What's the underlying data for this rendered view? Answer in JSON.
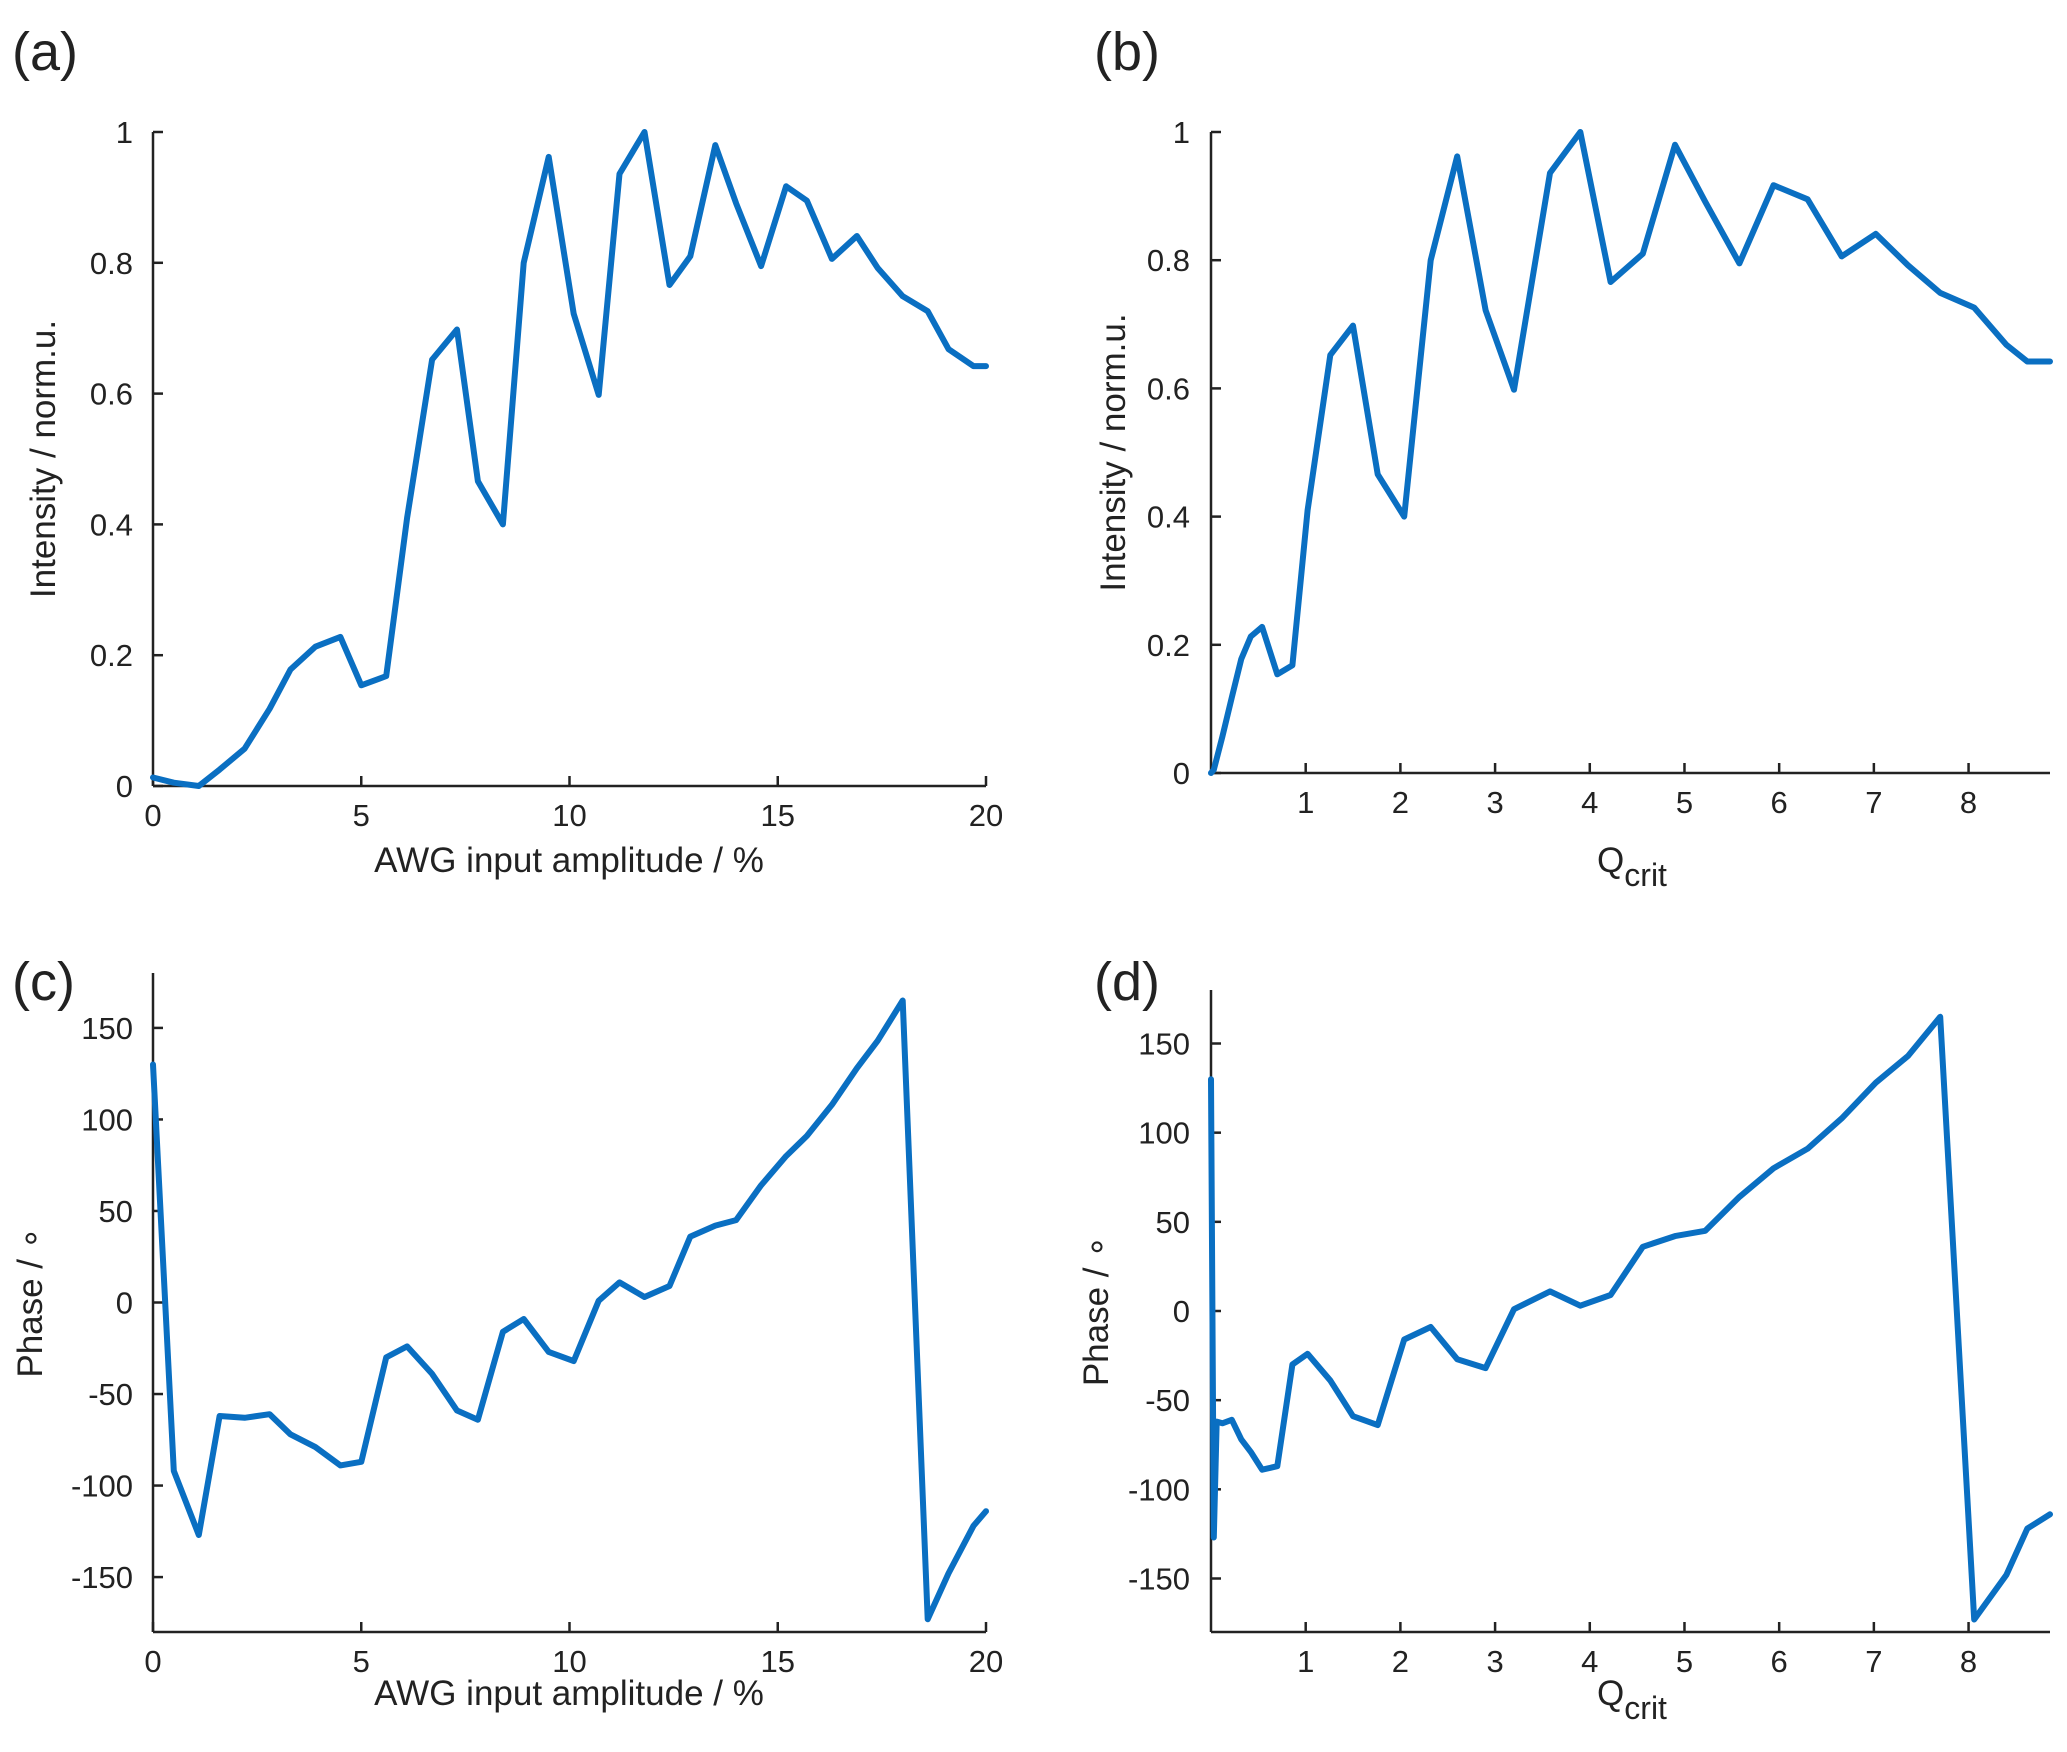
{
  "figure": {
    "series_color": "#0a6fc2",
    "axis_color": "#222222"
  },
  "chart_data": [
    {
      "panel": "(a)",
      "type": "line",
      "xlabel": "AWG input amplitude / %",
      "ylabel": "Intensity / norm.u.",
      "xlim": [
        0,
        20
      ],
      "ylim": [
        0,
        1
      ],
      "xticks": [
        0,
        5,
        10,
        15,
        20
      ],
      "yticks": [
        0,
        0.2,
        0.4,
        0.6,
        0.8,
        1
      ],
      "xtick_labels": [
        "0",
        "5",
        "10",
        "15",
        "20"
      ],
      "ytick_labels": [
        "0",
        "0.2",
        "0.4",
        "0.6",
        "0.8",
        "1"
      ],
      "grid": false,
      "series": [
        {
          "x": [
            0,
            0.5,
            1.1,
            1.6,
            2.2,
            2.8,
            3.3,
            3.9,
            4.5,
            5.0,
            5.6,
            6.1,
            6.7,
            7.3,
            7.8,
            8.4,
            8.9,
            9.5,
            10.1,
            10.7,
            11.2,
            11.8,
            12.4,
            12.9,
            13.5,
            14.0,
            14.6,
            15.2,
            15.7,
            16.3,
            16.9,
            17.4,
            18.0,
            18.6,
            19.1,
            19.7,
            20.0
          ],
          "y": [
            0.013,
            0.005,
            0.0,
            0.025,
            0.057,
            0.118,
            0.178,
            0.213,
            0.228,
            0.154,
            0.168,
            0.41,
            0.652,
            0.698,
            0.466,
            0.4,
            0.8,
            0.962,
            0.722,
            0.598,
            0.936,
            1.0,
            0.766,
            0.81,
            0.98,
            0.891,
            0.795,
            0.917,
            0.895,
            0.806,
            0.841,
            0.792,
            0.749,
            0.726,
            0.668,
            0.642,
            0.642
          ]
        }
      ]
    },
    {
      "panel": "(b)",
      "type": "line",
      "xlabel_main": "Q",
      "xlabel_sub": "crit",
      "ylabel": "Intensity / norm.u.",
      "xlim": [
        0,
        8.86
      ],
      "ylim": [
        0,
        1
      ],
      "xticks": [
        1,
        2,
        3,
        4,
        5,
        6,
        7,
        8
      ],
      "yticks": [
        0,
        0.2,
        0.4,
        0.6,
        0.8,
        1
      ],
      "xtick_labels": [
        "1",
        "2",
        "3",
        "4",
        "5",
        "6",
        "7",
        "8"
      ],
      "ytick_labels": [
        "0",
        "0.2",
        "0.4",
        "0.6",
        "0.8",
        "1"
      ],
      "grid": false,
      "series": [
        {
          "x": [
            0.0,
            0.03,
            0.12,
            0.22,
            0.32,
            0.42,
            0.54,
            0.7,
            0.86,
            1.02,
            1.26,
            1.5,
            1.76,
            2.04,
            2.32,
            2.6,
            2.9,
            3.2,
            3.58,
            3.9,
            4.22,
            4.56,
            4.9,
            5.22,
            5.58,
            5.94,
            6.3,
            6.66,
            7.02,
            7.36,
            7.7,
            8.06,
            8.4,
            8.62,
            8.86
          ],
          "y": [
            0.0,
            0.005,
            0.057,
            0.118,
            0.178,
            0.213,
            0.228,
            0.154,
            0.168,
            0.41,
            0.652,
            0.698,
            0.466,
            0.4,
            0.8,
            0.962,
            0.722,
            0.598,
            0.936,
            1.0,
            0.766,
            0.81,
            0.98,
            0.891,
            0.795,
            0.917,
            0.895,
            0.806,
            0.841,
            0.792,
            0.749,
            0.726,
            0.668,
            0.642,
            0.642
          ]
        }
      ]
    },
    {
      "panel": "(c)",
      "type": "line",
      "xlabel": "AWG input amplitude / %",
      "ylabel": "Phase / ∘",
      "xlim": [
        0,
        20
      ],
      "ylim": [
        -180,
        180
      ],
      "xticks": [
        0,
        5,
        10,
        15,
        20
      ],
      "yticks": [
        -150,
        -100,
        -50,
        0,
        50,
        100,
        150
      ],
      "xtick_labels": [
        "0",
        "5",
        "10",
        "15",
        "20"
      ],
      "ytick_labels": [
        "-150",
        "-100",
        "-50",
        "0",
        "50",
        "100",
        "150"
      ],
      "grid": false,
      "series": [
        {
          "x": [
            0,
            0.5,
            1.1,
            1.6,
            2.2,
            2.8,
            3.3,
            3.9,
            4.5,
            5.0,
            5.6,
            6.1,
            6.7,
            7.3,
            7.8,
            8.4,
            8.9,
            9.5,
            10.1,
            10.7,
            11.2,
            11.8,
            12.4,
            12.9,
            13.5,
            14.0,
            14.6,
            15.2,
            15.7,
            16.3,
            16.9,
            17.4,
            18.0,
            18.6,
            19.1,
            19.7,
            20.0
          ],
          "y": [
            130,
            -92,
            -127,
            -62,
            -63,
            -61,
            -72,
            -79,
            -89,
            -87,
            -30,
            -24,
            -39,
            -59,
            -64,
            -16,
            -9,
            -27,
            -32,
            1,
            11,
            3,
            9,
            36,
            42,
            45,
            64,
            80,
            91,
            108,
            128,
            143,
            165,
            -173,
            -148,
            -122,
            -114
          ]
        }
      ]
    },
    {
      "panel": "(d)",
      "type": "line",
      "xlabel_main": "Q",
      "xlabel_sub": "crit",
      "ylabel": "Phase / ∘",
      "xlim": [
        0,
        8.86
      ],
      "ylim": [
        -180,
        180
      ],
      "xticks": [
        1,
        2,
        3,
        4,
        5,
        6,
        7,
        8
      ],
      "yticks": [
        -150,
        -100,
        -50,
        0,
        50,
        100,
        150
      ],
      "xtick_labels": [
        "1",
        "2",
        "3",
        "4",
        "5",
        "6",
        "7",
        "8"
      ],
      "ytick_labels": [
        "-150",
        "-100",
        "-50",
        "0",
        "50",
        "100",
        "150"
      ],
      "grid": false,
      "series": [
        {
          "x": [
            0.0,
            0.03,
            0.06,
            0.12,
            0.22,
            0.32,
            0.42,
            0.54,
            0.7,
            0.86,
            1.02,
            1.26,
            1.5,
            1.76,
            2.04,
            2.32,
            2.6,
            2.9,
            3.2,
            3.58,
            3.9,
            4.22,
            4.56,
            4.9,
            5.22,
            5.58,
            5.94,
            6.3,
            6.66,
            7.02,
            7.36,
            7.7,
            8.06,
            8.4,
            8.62,
            8.86
          ],
          "y": [
            130,
            -127,
            -62,
            -63,
            -61,
            -72,
            -79,
            -89,
            -87,
            -30,
            -24,
            -39,
            -59,
            -64,
            -16,
            -9,
            -27,
            -32,
            1,
            11,
            3,
            9,
            36,
            42,
            45,
            64,
            80,
            91,
            108,
            128,
            143,
            165,
            -173,
            -148,
            -122,
            -114
          ]
        }
      ]
    }
  ]
}
